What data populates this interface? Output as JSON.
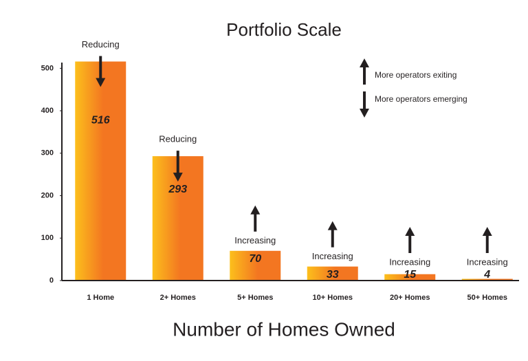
{
  "chart_data": {
    "type": "bar",
    "title": "Portfolio Scale",
    "x_label": "Number of Homes Owned",
    "categories": [
      "1 Home",
      "2+ Homes",
      "5+ Homes",
      "10+ Homes",
      "20+ Homes",
      "50+ Homes"
    ],
    "values": [
      516,
      293,
      70,
      33,
      15,
      4
    ],
    "annotations": [
      {
        "text": "Reducing",
        "direction": "down"
      },
      {
        "text": "Reducing",
        "direction": "down"
      },
      {
        "text": "Increasing",
        "direction": "up"
      },
      {
        "text": "Increasing",
        "direction": "up"
      },
      {
        "text": "Increasing",
        "direction": "up"
      },
      {
        "text": "Increasing",
        "direction": "up"
      }
    ],
    "legend": [
      {
        "text": "More operators exiting",
        "direction": "up"
      },
      {
        "text": "More operators emerging",
        "direction": "down"
      }
    ],
    "colors": [
      "#fcbf1c",
      "#f37621"
    ],
    "ylim": [
      0,
      520
    ],
    "yticks": [
      0,
      100,
      200,
      300,
      400,
      500
    ],
    "grid": false
  }
}
